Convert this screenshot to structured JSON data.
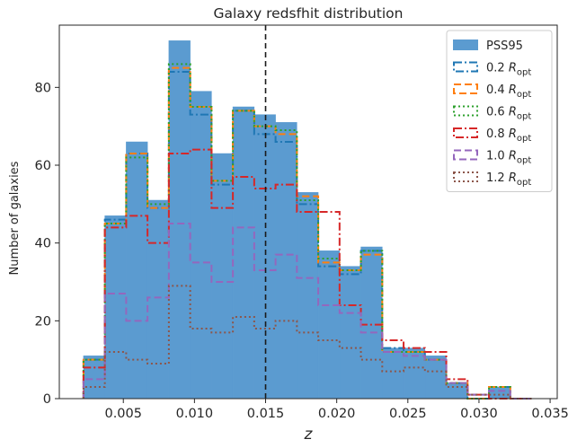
{
  "chart_data": {
    "type": "histogram",
    "title": "Galaxy redsfhit distribution",
    "xlabel": "z",
    "ylabel": "Number of galaxies",
    "xlim": [
      0.0005,
      0.0355
    ],
    "ylim": [
      0,
      96
    ],
    "xticks": [
      {
        "value": 0.005,
        "label": "0.005"
      },
      {
        "value": 0.01,
        "label": "0.010"
      },
      {
        "value": 0.015,
        "label": "0.015"
      },
      {
        "value": 0.02,
        "label": "0.020"
      },
      {
        "value": 0.025,
        "label": "0.025"
      },
      {
        "value": 0.03,
        "label": "0.030"
      },
      {
        "value": 0.035,
        "label": "0.035"
      }
    ],
    "yticks": [
      {
        "value": 0,
        "label": "0"
      },
      {
        "value": 20,
        "label": "20"
      },
      {
        "value": 40,
        "label": "40"
      },
      {
        "value": 60,
        "label": "60"
      },
      {
        "value": 80,
        "label": "80"
      }
    ],
    "vline": {
      "x": 0.015,
      "color": "#1a1a1a",
      "style": "dashed"
    },
    "legend_position": "upper right",
    "bin_edges": [
      0.0022,
      0.0037,
      0.0052,
      0.0067,
      0.0082,
      0.0097,
      0.0112,
      0.0127,
      0.0142,
      0.0157,
      0.0172,
      0.0187,
      0.0202,
      0.0217,
      0.0232,
      0.0247,
      0.0262,
      0.0277,
      0.0292,
      0.0307,
      0.0322,
      0.0337
    ],
    "series": [
      {
        "name": "PSS95",
        "subscript": "",
        "style": "filled",
        "color": "#5b9bd0",
        "counts": [
          11,
          47,
          66,
          51,
          92,
          79,
          63,
          75,
          73,
          71,
          53,
          38,
          34,
          39,
          13,
          13,
          11,
          4,
          0,
          3,
          0
        ]
      },
      {
        "name": "0.2 ",
        "name_italic": "R",
        "subscript": "opt",
        "style": "dashdot",
        "color": "#1f77b4",
        "counts": [
          10,
          46,
          63,
          49,
          84,
          73,
          55,
          74,
          68,
          66,
          50,
          34,
          32,
          38,
          13,
          12,
          10,
          4,
          0,
          3,
          0
        ]
      },
      {
        "name": "0.4 ",
        "name_italic": "R",
        "subscript": "opt",
        "style": "dashed",
        "color": "#ff7f0e",
        "counts": [
          10,
          45,
          63,
          49,
          85,
          75,
          56,
          74,
          70,
          68,
          52,
          35,
          33,
          37,
          12,
          12,
          10,
          4,
          0,
          3,
          0
        ]
      },
      {
        "name": "0.6 ",
        "name_italic": "R",
        "subscript": "opt",
        "style": "dotted",
        "color": "#2ca02c",
        "counts": [
          10,
          45,
          62,
          50,
          86,
          75,
          56,
          74,
          70,
          69,
          51,
          36,
          33,
          38,
          12,
          12,
          10,
          4,
          0,
          3,
          0
        ]
      },
      {
        "name": "0.8 ",
        "name_italic": "R",
        "subscript": "opt",
        "style": "dashdot",
        "color": "#d62728",
        "counts": [
          8,
          44,
          47,
          40,
          63,
          64,
          49,
          57,
          54,
          55,
          48,
          48,
          24,
          19,
          15,
          13,
          12,
          5,
          1,
          0,
          0
        ]
      },
      {
        "name": "1.0 ",
        "name_italic": "R",
        "subscript": "opt",
        "style": "dashed",
        "color": "#9467bd",
        "counts": [
          5,
          27,
          20,
          26,
          45,
          35,
          30,
          44,
          33,
          37,
          31,
          24,
          22,
          17,
          12,
          11,
          10,
          4,
          1,
          2,
          0
        ]
      },
      {
        "name": "1.2 ",
        "name_italic": "R",
        "subscript": "opt",
        "style": "dotted",
        "color": "#8c564b",
        "counts": [
          3,
          12,
          10,
          9,
          29,
          18,
          17,
          21,
          18,
          20,
          17,
          15,
          13,
          10,
          7,
          8,
          7,
          3,
          1,
          1,
          0
        ]
      }
    ]
  }
}
